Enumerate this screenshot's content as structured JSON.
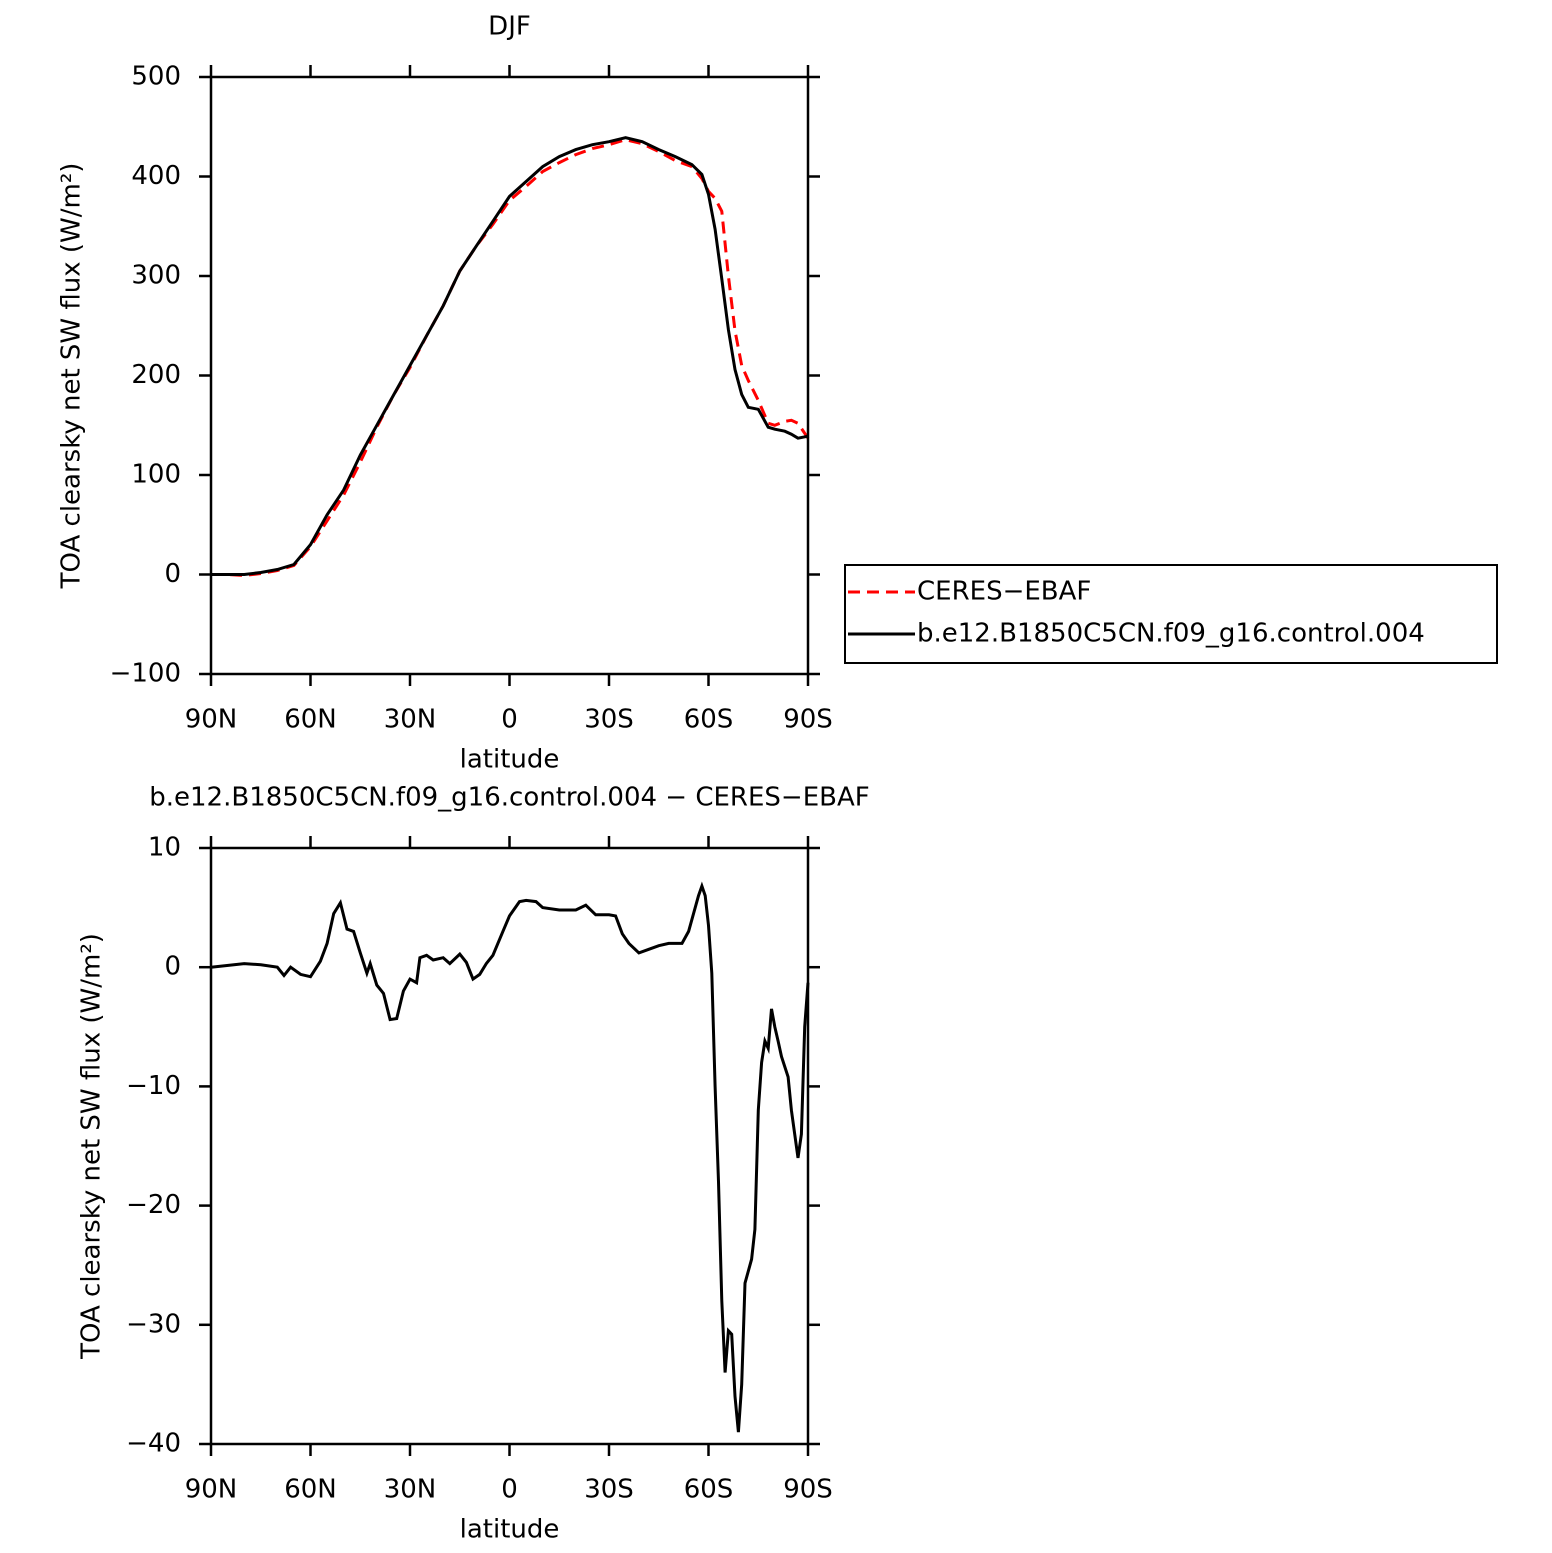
{
  "chart_data": [
    {
      "type": "line",
      "title": "DJF",
      "x_label": "latitude",
      "y_label": "TOA clearsky net SW flux (W/m²)",
      "x": [
        90,
        85,
        80,
        75,
        70,
        65,
        60,
        55,
        50,
        45,
        40,
        35,
        30,
        25,
        20,
        15,
        10,
        5,
        0,
        -5,
        -10,
        -15,
        -20,
        -25,
        -30,
        -35,
        -40,
        -45,
        -50,
        -55,
        -58,
        -60,
        -62,
        -64,
        -66,
        -68,
        -70,
        -72,
        -75,
        -78,
        -80,
        -83,
        -85,
        -87,
        -90
      ],
      "series": [
        {
          "name": "CERES−EBAF",
          "color": "#ff0000",
          "dashed": true,
          "values": [
            0,
            0,
            -1,
            1,
            4,
            9,
            28,
            54,
            80,
            113,
            148,
            180,
            208,
            240,
            270,
            305,
            330,
            352,
            376,
            390,
            405,
            414,
            422,
            428,
            432,
            437,
            433,
            425,
            416,
            410,
            398,
            385,
            378,
            365,
            300,
            245,
            210,
            195,
            175,
            152,
            150,
            154,
            155,
            152,
            137
          ]
        },
        {
          "name": "b.e12.B1850C5CN.f09_g16.control.004",
          "color": "#000000",
          "dashed": false,
          "values": [
            0,
            0,
            0,
            2,
            5,
            10,
            30,
            60,
            85,
            120,
            150,
            180,
            210,
            240,
            270,
            305,
            330,
            355,
            380,
            395,
            410,
            420,
            427,
            432,
            435,
            439,
            435,
            427,
            420,
            412,
            402,
            382,
            347,
            297,
            246,
            206,
            181,
            168,
            166,
            148,
            146,
            144,
            141,
            137,
            139
          ]
        }
      ],
      "xlim": [
        90,
        -90
      ],
      "xticks": [
        {
          "value": 90,
          "label": "90N"
        },
        {
          "value": 60,
          "label": "60N"
        },
        {
          "value": 30,
          "label": "30N"
        },
        0,
        {
          "value": -30,
          "label": "30S"
        },
        {
          "value": -60,
          "label": "60S"
        },
        {
          "value": -90,
          "label": "90S"
        }
      ],
      "ylim": [
        -100,
        500
      ],
      "yticks": [
        {
          "value": -100,
          "label": "−100"
        },
        0,
        100,
        200,
        300,
        400,
        500
      ],
      "legend": "right"
    },
    {
      "type": "line",
      "title": "b.e12.B1850C5CN.f09_g16.control.004 − CERES−EBAF",
      "x_label": "latitude",
      "y_label": "TOA clearsky net SW flux (W/m²)",
      "x": [
        90,
        80,
        75,
        70,
        68,
        66,
        63,
        60,
        57,
        55,
        53,
        51,
        49,
        47,
        45,
        43,
        42,
        40,
        38,
        36,
        34,
        32,
        30,
        28,
        27,
        25,
        23,
        20,
        18,
        15,
        13,
        11,
        9,
        7,
        5,
        2,
        0,
        -3,
        -5,
        -8,
        -10,
        -15,
        -20,
        -23,
        -26,
        -30,
        -32,
        -34,
        -36,
        -39,
        -42,
        -45,
        -48,
        -52,
        -54,
        -57,
        -58,
        -59,
        -60,
        -61,
        -62,
        -63,
        -64,
        -65,
        -66,
        -67,
        -68,
        -69,
        -70,
        -71,
        -73,
        -74,
        -75,
        -76,
        -77,
        -78,
        -79,
        -80,
        -81,
        -82,
        -84,
        -85,
        -86,
        -87,
        -88,
        -89,
        -90
      ],
      "series": [
        {
          "name": "b.e12.B1850C5CN.f09_g16.control.004 − CERES−EBAF",
          "color": "#000000",
          "dashed": false,
          "values": [
            0,
            0.3,
            0.2,
            0,
            -0.7,
            0,
            -0.6,
            -0.8,
            0.5,
            2.0,
            4.5,
            5.4,
            3.2,
            3,
            1.2,
            -0.5,
            0.3,
            -1.5,
            -2.2,
            -4.4,
            -4.3,
            -2,
            -1,
            -1.3,
            0.8,
            1.0,
            0.6,
            0.8,
            0.3,
            1.1,
            0.4,
            -1,
            -0.6,
            0.3,
            1.0,
            3.0,
            4.3,
            5.5,
            5.6,
            5.5,
            5.0,
            4.8,
            4.8,
            5.2,
            4.4,
            4.4,
            4.3,
            2.8,
            2.0,
            1.2,
            1.5,
            1.8,
            2.0,
            2.0,
            3.0,
            6.0,
            6.8,
            6.0,
            3.5,
            -0.5,
            -10,
            -18,
            -28,
            -34,
            -30.5,
            -30.8,
            -36,
            -39,
            -35,
            -26.5,
            -24.5,
            -22,
            -12,
            -8,
            -6.2,
            -6.8,
            -3.5,
            -5,
            -6.2,
            -7.5,
            -9.2,
            -12,
            -14,
            -16,
            -14,
            -5,
            -1.3
          ]
        }
      ],
      "xlim": [
        90,
        -90
      ],
      "xticks": [
        {
          "value": 90,
          "label": "90N"
        },
        {
          "value": 60,
          "label": "60N"
        },
        {
          "value": 30,
          "label": "30N"
        },
        0,
        {
          "value": -30,
          "label": "30S"
        },
        {
          "value": -60,
          "label": "60S"
        },
        {
          "value": -90,
          "label": "90S"
        }
      ],
      "ylim": [
        -40,
        10
      ],
      "yticks": [
        {
          "value": -40,
          "label": "−40"
        },
        {
          "value": -30,
          "label": "−30"
        },
        {
          "value": -20,
          "label": "−20"
        },
        {
          "value": -10,
          "label": "−10"
        },
        0,
        10
      ]
    }
  ]
}
